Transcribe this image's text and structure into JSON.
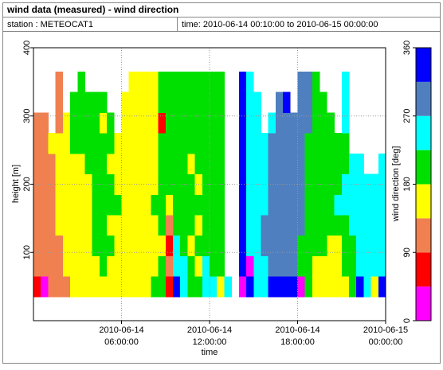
{
  "chart_data": {
    "type": "heatmap",
    "title": "wind data (measured) - wind direction",
    "station": "station : METEOCAT1",
    "period": "time: 2010-06-14 00:10:00 to 2010-06-15 00:00:00",
    "xlabel": "time",
    "ylabel": "height [m]",
    "xlim": [
      "2010-06-14 00:00:00",
      "2010-06-15 00:00:00"
    ],
    "xticks": [
      {
        "value": "2010-06-14 06:00:00",
        "label": [
          "2010-06-14",
          "06:00:00"
        ]
      },
      {
        "value": "2010-06-14 12:00:00",
        "label": [
          "2010-06-14",
          "12:00:00"
        ]
      },
      {
        "value": "2010-06-14 18:00:00",
        "label": [
          "2010-06-14",
          "18:00:00"
        ]
      },
      {
        "value": "2010-06-15 00:00:00",
        "label": [
          "2010-06-15",
          "00:00:00"
        ]
      }
    ],
    "ylim": [
      0,
      400
    ],
    "yticks": [
      100,
      200,
      300,
      400
    ],
    "grid": true,
    "x": [
      "2010-06-14 00:15:00",
      "2010-06-14 00:45:00",
      "2010-06-14 01:15:00",
      "2010-06-14 01:45:00",
      "2010-06-14 02:15:00",
      "2010-06-14 02:45:00",
      "2010-06-14 03:15:00",
      "2010-06-14 03:45:00",
      "2010-06-14 04:15:00",
      "2010-06-14 04:45:00",
      "2010-06-14 05:15:00",
      "2010-06-14 05:45:00",
      "2010-06-14 06:15:00",
      "2010-06-14 06:45:00",
      "2010-06-14 07:15:00",
      "2010-06-14 07:45:00",
      "2010-06-14 08:15:00",
      "2010-06-14 08:45:00",
      "2010-06-14 09:15:00",
      "2010-06-14 09:45:00",
      "2010-06-14 10:15:00",
      "2010-06-14 10:45:00",
      "2010-06-14 11:15:00",
      "2010-06-14 11:45:00",
      "2010-06-14 12:15:00",
      "2010-06-14 12:45:00",
      "2010-06-14 13:15:00",
      "2010-06-14 13:45:00",
      "2010-06-14 14:15:00",
      "2010-06-14 14:45:00",
      "2010-06-14 15:15:00",
      "2010-06-14 15:45:00",
      "2010-06-14 16:15:00",
      "2010-06-14 16:45:00",
      "2010-06-14 17:15:00",
      "2010-06-14 17:45:00",
      "2010-06-14 18:15:00",
      "2010-06-14 18:45:00",
      "2010-06-14 19:15:00",
      "2010-06-14 19:45:00",
      "2010-06-14 20:15:00",
      "2010-06-14 20:45:00",
      "2010-06-14 21:15:00",
      "2010-06-14 21:45:00",
      "2010-06-14 22:15:00",
      "2010-06-14 22:45:00",
      "2010-06-14 23:15:00",
      "2010-06-14 23:45:00"
    ],
    "y": [
      50,
      80,
      110,
      140,
      170,
      200,
      230,
      260,
      290,
      320,
      350
    ],
    "values": [
      [
        70,
        110,
        110,
        110,
        110,
        110,
        110,
        110,
        110,
        null,
        null
      ],
      [
        20,
        110,
        110,
        110,
        110,
        110,
        110,
        110,
        110,
        null,
        null
      ],
      [
        110,
        110,
        110,
        110,
        110,
        110,
        110,
        160,
        null,
        null,
        null
      ],
      [
        110,
        110,
        110,
        160,
        160,
        160,
        160,
        160,
        110,
        110,
        110
      ],
      [
        110,
        160,
        160,
        160,
        160,
        160,
        160,
        160,
        160,
        null,
        null
      ],
      [
        160,
        160,
        160,
        160,
        160,
        160,
        160,
        200,
        200,
        200,
        null
      ],
      [
        160,
        160,
        160,
        160,
        160,
        160,
        160,
        200,
        200,
        200,
        200
      ],
      [
        160,
        160,
        160,
        160,
        160,
        160,
        200,
        200,
        200,
        200,
        null
      ],
      [
        160,
        160,
        200,
        200,
        200,
        200,
        200,
        200,
        200,
        200,
        null
      ],
      [
        160,
        200,
        200,
        200,
        200,
        200,
        200,
        200,
        160,
        200,
        null
      ],
      [
        160,
        160,
        200,
        160,
        200,
        200,
        160,
        200,
        200,
        null,
        null
      ],
      [
        160,
        160,
        160,
        160,
        200,
        160,
        160,
        160,
        null,
        null,
        null
      ],
      [
        160,
        160,
        160,
        160,
        160,
        160,
        160,
        160,
        160,
        160,
        null
      ],
      [
        160,
        160,
        160,
        160,
        160,
        160,
        160,
        160,
        160,
        160,
        160
      ],
      [
        160,
        160,
        160,
        160,
        160,
        160,
        160,
        160,
        160,
        160,
        160
      ],
      [
        160,
        160,
        160,
        160,
        160,
        160,
        160,
        160,
        160,
        160,
        160
      ],
      [
        200,
        160,
        160,
        160,
        200,
        160,
        160,
        160,
        160,
        160,
        160
      ],
      [
        200,
        200,
        160,
        200,
        200,
        200,
        200,
        200,
        70,
        200,
        200
      ],
      [
        70,
        110,
        70,
        110,
        160,
        200,
        200,
        200,
        200,
        200,
        200
      ],
      [
        340,
        250,
        250,
        200,
        200,
        200,
        200,
        200,
        200,
        200,
        200
      ],
      [
        250,
        250,
        200,
        200,
        200,
        200,
        200,
        200,
        200,
        200,
        200
      ],
      [
        200,
        200,
        160,
        200,
        200,
        200,
        160,
        200,
        200,
        200,
        200
      ],
      [
        200,
        160,
        200,
        160,
        200,
        160,
        200,
        200,
        200,
        200,
        200
      ],
      [
        250,
        250,
        200,
        200,
        200,
        200,
        200,
        200,
        200,
        200,
        200
      ],
      [
        250,
        200,
        200,
        200,
        200,
        200,
        200,
        200,
        200,
        200,
        200
      ],
      [
        160,
        200,
        200,
        200,
        200,
        200,
        200,
        200,
        200,
        200,
        200
      ],
      [
        250,
        null,
        null,
        null,
        null,
        null,
        null,
        null,
        null,
        null,
        null
      ],
      [
        null,
        null,
        null,
        null,
        null,
        null,
        null,
        null,
        null,
        null,
        null
      ],
      [
        20,
        340,
        340,
        340,
        340,
        340,
        340,
        340,
        340,
        340,
        340
      ],
      [
        340,
        20,
        250,
        250,
        250,
        250,
        250,
        250,
        250,
        250,
        250
      ],
      [
        250,
        250,
        250,
        250,
        250,
        250,
        250,
        250,
        250,
        250,
        null
      ],
      [
        250,
        250,
        290,
        290,
        250,
        250,
        250,
        250,
        null,
        null,
        null
      ],
      [
        340,
        290,
        290,
        290,
        290,
        290,
        290,
        290,
        250,
        null,
        null
      ],
      [
        340,
        290,
        290,
        290,
        290,
        290,
        290,
        290,
        290,
        290,
        null
      ],
      [
        340,
        290,
        290,
        290,
        290,
        290,
        290,
        290,
        290,
        340,
        null
      ],
      [
        340,
        290,
        290,
        290,
        290,
        290,
        290,
        290,
        290,
        null,
        null
      ],
      [
        20,
        200,
        200,
        290,
        290,
        290,
        290,
        290,
        290,
        290,
        290
      ],
      [
        200,
        200,
        200,
        200,
        200,
        200,
        200,
        200,
        290,
        290,
        290
      ],
      [
        160,
        160,
        200,
        200,
        200,
        200,
        200,
        200,
        200,
        200,
        200
      ],
      [
        160,
        160,
        200,
        200,
        200,
        200,
        200,
        200,
        200,
        200,
        null
      ],
      [
        160,
        160,
        160,
        200,
        200,
        200,
        200,
        200,
        200,
        null,
        null
      ],
      [
        160,
        160,
        160,
        200,
        250,
        200,
        200,
        200,
        null,
        null,
        null
      ],
      [
        160,
        200,
        200,
        200,
        250,
        250,
        200,
        200,
        250,
        250,
        250
      ],
      [
        200,
        200,
        200,
        250,
        250,
        250,
        250,
        null,
        null,
        null,
        null
      ],
      [
        340,
        250,
        250,
        250,
        250,
        250,
        250,
        null,
        null,
        null,
        null
      ],
      [
        250,
        250,
        250,
        250,
        250,
        250,
        null,
        null,
        null,
        null,
        null
      ],
      [
        160,
        250,
        250,
        250,
        250,
        250,
        null,
        null,
        null,
        null,
        null
      ],
      [
        340,
        250,
        250,
        250,
        250,
        250,
        250,
        null,
        null,
        null,
        null
      ]
    ],
    "colorbar": {
      "label": "wind direction [deg]",
      "lim": [
        0,
        360
      ],
      "ticks": [
        0,
        90,
        180,
        270,
        360
      ],
      "bounds": [
        0,
        45,
        90,
        135,
        180,
        225,
        270,
        315,
        360
      ],
      "colors": [
        "#ff00ff",
        "#ff0000",
        "#f08050",
        "#ffff00",
        "#00e000",
        "#00ffff",
        "#4f7fbf",
        "#0000ff"
      ]
    }
  }
}
